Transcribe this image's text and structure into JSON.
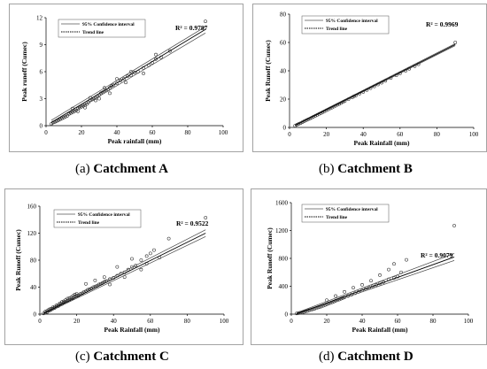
{
  "captions": [
    {
      "letter": "(a)",
      "name": "Catchment A"
    },
    {
      "letter": "(b)",
      "name": "Catchment B"
    },
    {
      "letter": "(c)",
      "name": "Catchment C"
    },
    {
      "letter": "(d)",
      "name": "Catchment D"
    }
  ],
  "legend": {
    "ci": "95% Confidence interval",
    "trend": "Trend line"
  },
  "chart_data": [
    {
      "type": "scatter",
      "id": "A",
      "xlabel": "Peak rainfall (mm)",
      "ylabel": "Peak runoff (Cumec)",
      "r2": "R² = 0.9787",
      "xlim": [
        0,
        100
      ],
      "ylim": [
        0,
        12
      ],
      "xticks": [
        "0",
        "20",
        "40",
        "60",
        "80",
        "100"
      ],
      "yticks": [
        "0",
        "3",
        "6",
        "9",
        "12"
      ],
      "trend": {
        "x": [
          3,
          90
        ],
        "y": [
          0.35,
          10.7
        ]
      },
      "ci_upper": {
        "x": [
          3,
          90
        ],
        "y": [
          0.6,
          11.0
        ]
      },
      "ci_lower": {
        "x": [
          3,
          90
        ],
        "y": [
          0.1,
          10.3
        ]
      },
      "points": [
        [
          3,
          0.2
        ],
        [
          4,
          0.35
        ],
        [
          5,
          0.4
        ],
        [
          6,
          0.5
        ],
        [
          7,
          0.6
        ],
        [
          8,
          0.7
        ],
        [
          9,
          0.8
        ],
        [
          10,
          0.9
        ],
        [
          11,
          1.0
        ],
        [
          12,
          1.1
        ],
        [
          13,
          1.3
        ],
        [
          14,
          1.4
        ],
        [
          15,
          1.5
        ],
        [
          16,
          1.6
        ],
        [
          17,
          1.7
        ],
        [
          18,
          1.9
        ],
        [
          19,
          2.0
        ],
        [
          20,
          2.1
        ],
        [
          21,
          2.2
        ],
        [
          22,
          2.3
        ],
        [
          23,
          2.4
        ],
        [
          24,
          2.6
        ],
        [
          25,
          2.8
        ],
        [
          26,
          2.9
        ],
        [
          27,
          3.0
        ],
        [
          28,
          3.1
        ],
        [
          29,
          3.3
        ],
        [
          30,
          3.4
        ],
        [
          31,
          3.6
        ],
        [
          32,
          3.7
        ],
        [
          33,
          3.8
        ],
        [
          34,
          3.9
        ],
        [
          35,
          4.0
        ],
        [
          36,
          4.2
        ],
        [
          37,
          4.4
        ],
        [
          38,
          4.5
        ],
        [
          40,
          4.7
        ],
        [
          42,
          5.0
        ],
        [
          44,
          5.2
        ],
        [
          46,
          5.5
        ],
        [
          48,
          5.6
        ],
        [
          50,
          5.9
        ],
        [
          52,
          6.0
        ],
        [
          55,
          6.4
        ],
        [
          58,
          6.7
        ],
        [
          60,
          7.0
        ],
        [
          62,
          7.4
        ],
        [
          65,
          7.6
        ],
        [
          70,
          8.3
        ],
        [
          90,
          11.6
        ],
        [
          15,
          1.9
        ],
        [
          18,
          1.6
        ],
        [
          22,
          2.0
        ],
        [
          25,
          3.1
        ],
        [
          28,
          2.8
        ],
        [
          30,
          3.0
        ],
        [
          33,
          4.2
        ],
        [
          36,
          3.6
        ],
        [
          40,
          5.2
        ],
        [
          45,
          4.8
        ],
        [
          48,
          6.0
        ],
        [
          55,
          5.8
        ],
        [
          62,
          7.9
        ]
      ]
    },
    {
      "type": "scatter",
      "id": "B",
      "xlabel": "Peak Rainfall (mm)",
      "ylabel": "Peak Runoff (Cumec)",
      "r2": "R² = 0.9969",
      "xlim": [
        0,
        100
      ],
      "ylim": [
        0,
        80
      ],
      "xticks": [
        "0",
        "20",
        "40",
        "60",
        "80",
        "100"
      ],
      "yticks": [
        "0",
        "20",
        "40",
        "60",
        "80"
      ],
      "trend": {
        "x": [
          3,
          90
        ],
        "y": [
          1.5,
          58.5
        ]
      },
      "ci_upper": {
        "x": [
          3,
          90
        ],
        "y": [
          1.9,
          59.2
        ]
      },
      "ci_lower": {
        "x": [
          3,
          90
        ],
        "y": [
          1.1,
          57.8
        ]
      },
      "points": [
        [
          3,
          1.2
        ],
        [
          4,
          1.9
        ],
        [
          5,
          2.5
        ],
        [
          6,
          3.0
        ],
        [
          7,
          3.7
        ],
        [
          8,
          4.4
        ],
        [
          9,
          5.0
        ],
        [
          10,
          5.6
        ],
        [
          11,
          6.2
        ],
        [
          12,
          6.9
        ],
        [
          13,
          7.6
        ],
        [
          14,
          8.2
        ],
        [
          15,
          8.8
        ],
        [
          16,
          9.5
        ],
        [
          17,
          10.1
        ],
        [
          18,
          10.8
        ],
        [
          19,
          11.4
        ],
        [
          20,
          12.1
        ],
        [
          21,
          12.7
        ],
        [
          22,
          13.4
        ],
        [
          23,
          14.0
        ],
        [
          24,
          14.7
        ],
        [
          25,
          15.3
        ],
        [
          26,
          16.0
        ],
        [
          27,
          16.6
        ],
        [
          28,
          17.3
        ],
        [
          29,
          18.0
        ],
        [
          30,
          18.6
        ],
        [
          32,
          19.9
        ],
        [
          34,
          21.2
        ],
        [
          35,
          22.0
        ],
        [
          36,
          22.5
        ],
        [
          38,
          23.8
        ],
        [
          40,
          25.1
        ],
        [
          42,
          26.4
        ],
        [
          44,
          27.7
        ],
        [
          46,
          29.0
        ],
        [
          48,
          30.3
        ],
        [
          50,
          31.6
        ],
        [
          52,
          32.9
        ],
        [
          55,
          34.9
        ],
        [
          58,
          36.8
        ],
        [
          60,
          38.1
        ],
        [
          63,
          40.0
        ],
        [
          65,
          41.4
        ],
        [
          68,
          43.3
        ],
        [
          70,
          44.6
        ],
        [
          90,
          60.0
        ]
      ]
    },
    {
      "type": "scatter",
      "id": "C",
      "xlabel": "Peak Rainfall (mm)",
      "ylabel": "Peak Runoff (Cumec)",
      "r2": "R² = 0.9522",
      "xlim": [
        0,
        100
      ],
      "ylim": [
        0,
        160
      ],
      "xticks": [
        "0",
        "20",
        "40",
        "60",
        "80",
        "100"
      ],
      "yticks": [
        "0",
        "40",
        "80",
        "120",
        "160"
      ],
      "trend": {
        "x": [
          2,
          90
        ],
        "y": [
          1.0,
          120.0
        ]
      },
      "ci_upper": {
        "x": [
          2,
          90
        ],
        "y": [
          2.5,
          125.0
        ]
      },
      "ci_lower": {
        "x": [
          2,
          90
        ],
        "y": [
          0.0,
          115.0
        ]
      },
      "points": [
        [
          2,
          1
        ],
        [
          3,
          2
        ],
        [
          3,
          4
        ],
        [
          4,
          3
        ],
        [
          4,
          5
        ],
        [
          5,
          5
        ],
        [
          5,
          7
        ],
        [
          6,
          6
        ],
        [
          6,
          8
        ],
        [
          7,
          8
        ],
        [
          7,
          10
        ],
        [
          8,
          9
        ],
        [
          8,
          11
        ],
        [
          9,
          11
        ],
        [
          9,
          13
        ],
        [
          10,
          12
        ],
        [
          10,
          14
        ],
        [
          11,
          14
        ],
        [
          11,
          16
        ],
        [
          12,
          15
        ],
        [
          12,
          18
        ],
        [
          13,
          17
        ],
        [
          13,
          19
        ],
        [
          14,
          18
        ],
        [
          14,
          21
        ],
        [
          15,
          20
        ],
        [
          15,
          23
        ],
        [
          16,
          21
        ],
        [
          16,
          24
        ],
        [
          17,
          22
        ],
        [
          17,
          25
        ],
        [
          18,
          24
        ],
        [
          18,
          27
        ],
        [
          19,
          26
        ],
        [
          19,
          29
        ],
        [
          20,
          27
        ],
        [
          20,
          30
        ],
        [
          21,
          28
        ],
        [
          22,
          30
        ],
        [
          23,
          31
        ],
        [
          24,
          33
        ],
        [
          25,
          34
        ],
        [
          26,
          36
        ],
        [
          27,
          37
        ],
        [
          28,
          38
        ],
        [
          29,
          40
        ],
        [
          30,
          41
        ],
        [
          31,
          42
        ],
        [
          32,
          44
        ],
        [
          33,
          45
        ],
        [
          34,
          46
        ],
        [
          35,
          48
        ],
        [
          36,
          49
        ],
        [
          38,
          52
        ],
        [
          40,
          54
        ],
        [
          42,
          57
        ],
        [
          44,
          60
        ],
        [
          46,
          62
        ],
        [
          48,
          66
        ],
        [
          50,
          70
        ],
        [
          52,
          72
        ],
        [
          55,
          80
        ],
        [
          58,
          86
        ],
        [
          60,
          90
        ],
        [
          62,
          95
        ],
        [
          65,
          84
        ],
        [
          70,
          112
        ],
        [
          90,
          143
        ],
        [
          25,
          45
        ],
        [
          30,
          50
        ],
        [
          35,
          55
        ],
        [
          38,
          44
        ],
        [
          42,
          70
        ],
        [
          46,
          55
        ],
        [
          50,
          82
        ],
        [
          55,
          66
        ],
        [
          58,
          75
        ]
      ]
    },
    {
      "type": "scatter",
      "id": "D",
      "xlabel": "Peak Rainfall (mm)",
      "ylabel": "Peak Runoff (Cumec)",
      "r2": "R² = 0.9079",
      "xlim": [
        0,
        100
      ],
      "ylim": [
        0,
        1600
      ],
      "xticks": [
        "0",
        "20",
        "40",
        "60",
        "80",
        "100"
      ],
      "yticks": [
        "0",
        "400",
        "800",
        "1200",
        "1600"
      ],
      "trend": {
        "x": [
          3,
          92
        ],
        "y": [
          5,
          820
        ]
      },
      "ci_upper": {
        "x": [
          3,
          92
        ],
        "y": [
          20,
          870
        ]
      },
      "ci_lower": {
        "x": [
          3,
          92
        ],
        "y": [
          0,
          770
        ]
      },
      "points": [
        [
          3,
          10
        ],
        [
          4,
          15
        ],
        [
          5,
          20
        ],
        [
          6,
          25
        ],
        [
          7,
          30
        ],
        [
          8,
          40
        ],
        [
          9,
          45
        ],
        [
          10,
          55
        ],
        [
          11,
          60
        ],
        [
          12,
          70
        ],
        [
          13,
          75
        ],
        [
          14,
          85
        ],
        [
          15,
          95
        ],
        [
          16,
          100
        ],
        [
          17,
          110
        ],
        [
          18,
          120
        ],
        [
          19,
          130
        ],
        [
          20,
          140
        ],
        [
          21,
          150
        ],
        [
          22,
          160
        ],
        [
          23,
          170
        ],
        [
          24,
          180
        ],
        [
          25,
          190
        ],
        [
          26,
          200
        ],
        [
          27,
          210
        ],
        [
          28,
          220
        ],
        [
          29,
          230
        ],
        [
          30,
          240
        ],
        [
          32,
          260
        ],
        [
          34,
          280
        ],
        [
          36,
          300
        ],
        [
          38,
          320
        ],
        [
          40,
          340
        ],
        [
          42,
          360
        ],
        [
          44,
          380
        ],
        [
          46,
          400
        ],
        [
          48,
          420
        ],
        [
          50,
          440
        ],
        [
          52,
          460
        ],
        [
          55,
          500
        ],
        [
          58,
          520
        ],
        [
          60,
          540
        ],
        [
          62,
          600
        ],
        [
          65,
          780
        ],
        [
          58,
          720
        ],
        [
          55,
          640
        ],
        [
          50,
          560
        ],
        [
          45,
          480
        ],
        [
          40,
          420
        ],
        [
          35,
          380
        ],
        [
          30,
          320
        ],
        [
          25,
          260
        ],
        [
          20,
          200
        ],
        [
          92,
          1270
        ]
      ]
    }
  ]
}
